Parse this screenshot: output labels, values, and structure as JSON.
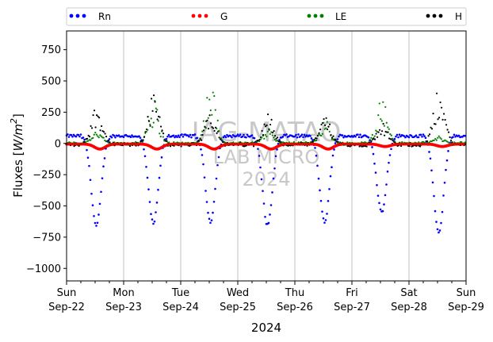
{
  "chart_data": {
    "type": "scatter",
    "xlabel": "2024",
    "ylabel": "Fluxes [W/m²]",
    "ylabel_main": "Fluxes [",
    "ylabel_unit_base": "W/m",
    "ylabel_unit_exp": "2",
    "ylabel_close": "]",
    "xlim": [
      "2024-09-22",
      "2024-09-29"
    ],
    "ylim": [
      -1100,
      900
    ],
    "y_ticks": [
      -1000,
      -750,
      -500,
      -250,
      0,
      250,
      500,
      750
    ],
    "y_tick_labels": [
      "−1000",
      "−750",
      "−500",
      "−250",
      "0",
      "250",
      "500",
      "750"
    ],
    "x_ticks": [
      {
        "day": "Sun",
        "date": "Sep-22"
      },
      {
        "day": "Mon",
        "date": "Sep-23"
      },
      {
        "day": "Tue",
        "date": "Sep-24"
      },
      {
        "day": "Wed",
        "date": "Sep-25"
      },
      {
        "day": "Thu",
        "date": "Sep-26"
      },
      {
        "day": "Fri",
        "date": "Sep-27"
      },
      {
        "day": "Sat",
        "date": "Sep-28"
      },
      {
        "day": "Sun",
        "date": "Sep-29"
      }
    ],
    "grid": "vertical at day boundaries",
    "legend_position": "top, outside plot, spanning full width",
    "series": [
      {
        "name": "Rn",
        "color": "#0000ff",
        "marker": "dot",
        "daily_peaks": [
          -660,
          -640,
          -625,
          -655,
          -630,
          -550,
          -720
        ],
        "night_level": 60
      },
      {
        "name": "G",
        "color": "#ff0000",
        "marker": "dot",
        "daily_minimum": [
          -40,
          -40,
          -40,
          -40,
          -40,
          -20,
          -20
        ]
      },
      {
        "name": "LE",
        "color": "#008000",
        "marker": "dot",
        "daily_maximum": [
          110,
          360,
          500,
          130,
          200,
          390,
          60
        ]
      },
      {
        "name": "H",
        "color": "#000000",
        "marker": "dot",
        "daily_maximum": [
          320,
          410,
          290,
          250,
          230,
          170,
          450
        ]
      }
    ],
    "watermark": {
      "line1": "IAG-MATAO",
      "line2": "LAB MICRO",
      "line3": "2024"
    }
  }
}
